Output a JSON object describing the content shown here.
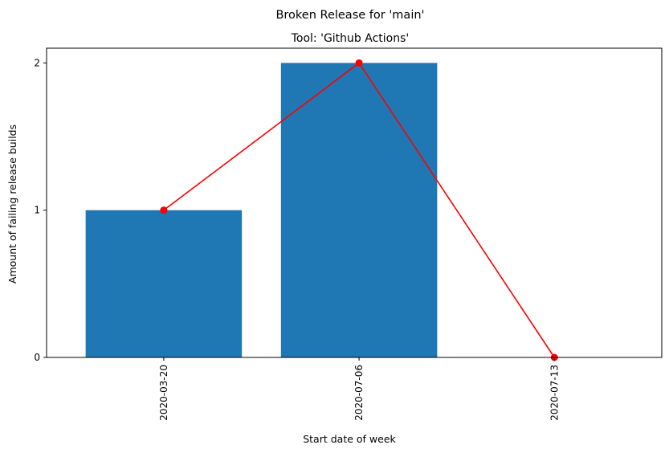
{
  "chart_data": {
    "type": "bar",
    "suptitle": "Broken Release for 'main'",
    "title": "Tool: 'Github Actions'",
    "xlabel": "Start date of week",
    "ylabel": "Amount of failing release builds",
    "categories": [
      "2020-03-20",
      "2020-07-06",
      "2020-07-13"
    ],
    "values": [
      1,
      2,
      0
    ],
    "line_values": [
      1,
      2,
      0
    ],
    "yticks": [
      "0",
      "1",
      "2"
    ],
    "ylim": [
      0,
      2.1
    ],
    "grid": false,
    "legend": "none",
    "colors": {
      "bar": "#1f77b4",
      "line": "#ff0000",
      "axis": "#000000"
    }
  }
}
